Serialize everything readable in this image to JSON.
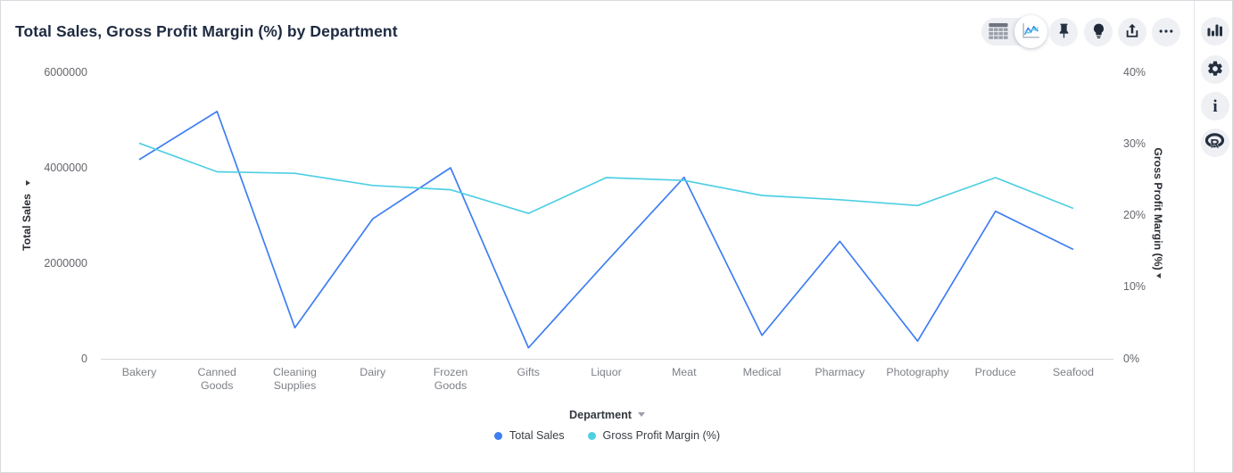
{
  "header": {
    "title": "Total Sales, Gross Profit Margin (%) by Department"
  },
  "toolbar": {
    "view_toggle": {
      "options": [
        "table-view",
        "chart-view"
      ],
      "active": "chart-view",
      "icons": [
        "table-grid-icon",
        "line-chart-icon"
      ]
    },
    "buttons": [
      {
        "icon": "pushpin-icon"
      },
      {
        "icon": "lightbulb-icon"
      },
      {
        "icon": "share-export-icon"
      },
      {
        "icon": "ellipsis-icon"
      }
    ]
  },
  "right_rail": {
    "buttons": [
      {
        "icon": "bar-chart-icon"
      },
      {
        "icon": "gear-icon"
      },
      {
        "icon": "info-icon"
      },
      {
        "icon": "r-logo-icon"
      }
    ]
  },
  "colors": {
    "series_blue": "#3f7ef2",
    "series_cyan": "#4fcfe3",
    "icon_dark": "#242f40",
    "button_bg": "#eef0f4"
  },
  "chart_data": {
    "type": "line",
    "title": "Total Sales, Gross Profit Margin (%) by Department",
    "categories": [
      "Bakery",
      "Canned\nGoods",
      "Cleaning\nSupplies",
      "Dairy",
      "Frozen\nGoods",
      "Gifts",
      "Liquor",
      "Meat",
      "Medical",
      "Pharmacy",
      "Photography",
      "Produce",
      "Seafood"
    ],
    "xlabel": "Department",
    "grid": false,
    "legend_position": "bottom",
    "left_axis": {
      "label": "Total Sales",
      "range": [
        0,
        6000000
      ],
      "tick_values": [
        0,
        2000000,
        4000000,
        6000000
      ],
      "ticks": [
        "0",
        "2000000",
        "4000000",
        "6000000"
      ]
    },
    "right_axis": {
      "label": "Gross Profit Margin (%)",
      "range": [
        0,
        40
      ],
      "tick_values": [
        0,
        10,
        20,
        30,
        40
      ],
      "ticks": [
        "0%",
        "10%",
        "20%",
        "30%",
        "40%"
      ]
    },
    "series": [
      {
        "name": "Total Sales",
        "axis": "left",
        "color": "#3f7ef2",
        "values": [
          4170000,
          5180000,
          650000,
          2930000,
          4000000,
          230000,
          2030000,
          3800000,
          490000,
          2460000,
          370000,
          3090000,
          2290000
        ]
      },
      {
        "name": "Gross Profit Margin (%)",
        "axis": "right",
        "color": "#4fcfe3",
        "values": [
          30.1,
          26.1,
          25.9,
          24.2,
          23.6,
          20.3,
          25.3,
          24.9,
          22.8,
          22.2,
          21.4,
          25.3,
          21.0
        ]
      }
    ]
  }
}
